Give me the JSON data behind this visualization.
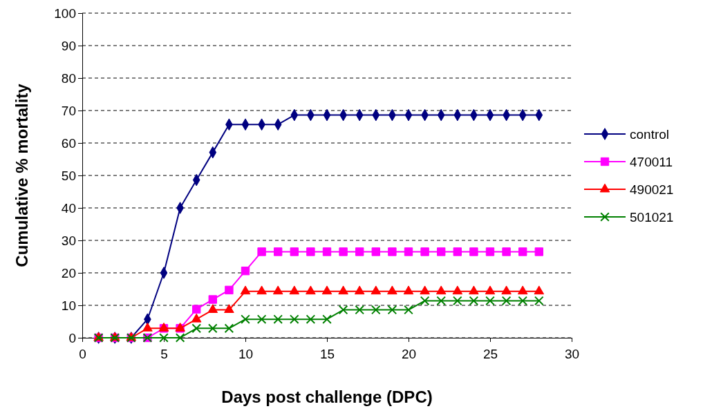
{
  "chart_data": {
    "type": "line",
    "xlabel": "Days post challenge (DPC)",
    "ylabel": "Cumulative % mortality",
    "x": [
      1,
      2,
      3,
      4,
      5,
      6,
      7,
      8,
      9,
      10,
      11,
      12,
      13,
      14,
      15,
      16,
      17,
      18,
      19,
      20,
      21,
      22,
      23,
      24,
      25,
      26,
      27,
      28
    ],
    "series": [
      {
        "name": "control",
        "color": "#000080",
        "marker": "diamond",
        "values": [
          0,
          0,
          0,
          5.7,
          20,
          40,
          48.6,
          57.1,
          65.7,
          65.7,
          65.7,
          65.7,
          68.6,
          68.6,
          68.6,
          68.6,
          68.6,
          68.6,
          68.6,
          68.6,
          68.6,
          68.6,
          68.6,
          68.6,
          68.6,
          68.6,
          68.6,
          68.6
        ]
      },
      {
        "name": "470011",
        "color": "#ff00ff",
        "marker": "square",
        "values": [
          0,
          0,
          0,
          0,
          2.9,
          2.9,
          8.8,
          11.8,
          14.7,
          20.6,
          26.5,
          26.5,
          26.5,
          26.5,
          26.5,
          26.5,
          26.5,
          26.5,
          26.5,
          26.5,
          26.5,
          26.5,
          26.5,
          26.5,
          26.5,
          26.5,
          26.5,
          26.5
        ]
      },
      {
        "name": "490021",
        "color": "#ff0000",
        "marker": "triangle",
        "values": [
          0,
          0,
          0,
          2.9,
          2.9,
          2.9,
          5.7,
          8.6,
          8.6,
          14.3,
          14.3,
          14.3,
          14.3,
          14.3,
          14.3,
          14.3,
          14.3,
          14.3,
          14.3,
          14.3,
          14.3,
          14.3,
          14.3,
          14.3,
          14.3,
          14.3,
          14.3,
          14.3
        ]
      },
      {
        "name": "501021",
        "color": "#008000",
        "marker": "cross",
        "values": [
          0,
          0,
          0,
          0,
          0,
          0,
          2.9,
          2.9,
          2.9,
          5.7,
          5.7,
          5.7,
          5.7,
          5.7,
          5.7,
          8.6,
          8.6,
          8.6,
          8.6,
          8.6,
          11.4,
          11.4,
          11.4,
          11.4,
          11.4,
          11.4,
          11.4,
          11.4
        ]
      }
    ],
    "xlim": [
      0,
      30
    ],
    "xticks": [
      0,
      5,
      10,
      15,
      20,
      25,
      30
    ],
    "ylim": [
      0,
      100
    ],
    "yticks": [
      0,
      10,
      20,
      30,
      40,
      50,
      60,
      70,
      80,
      90,
      100
    ],
    "grid": "y",
    "legend": "right",
    "line_style": "solid"
  }
}
